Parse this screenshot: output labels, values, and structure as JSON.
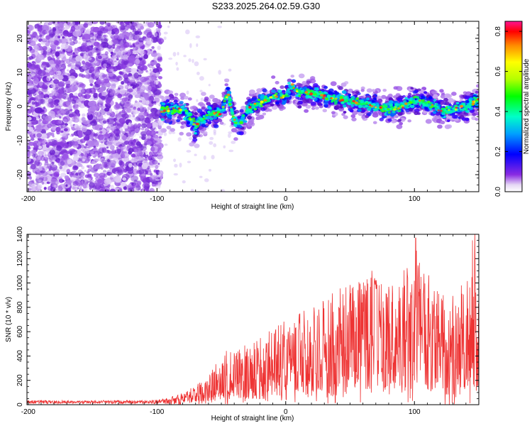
{
  "title": "S233.2025.264.02.59.G30",
  "chart_data": [
    {
      "type": "heatmap",
      "xlabel": "Height of straight line (km)",
      "ylabel": "Frequency (Hz)",
      "xlim": [
        -201,
        150
      ],
      "ylim": [
        -25,
        25
      ],
      "xticks": [
        -200,
        -100,
        0,
        100
      ],
      "xtick_labels": [
        "-200",
        "-100",
        "0",
        "100"
      ],
      "yticks": [
        -20,
        -10,
        0,
        10,
        20
      ],
      "ytick_labels": [
        "-20",
        "-10",
        "0",
        "10",
        "20"
      ],
      "colorbar": {
        "label": "Normalized spectral amplitude",
        "range": [
          0,
          0.85
        ],
        "ticks": [
          0.0,
          0.2,
          0.4,
          0.6,
          0.8
        ],
        "tick_labels": [
          "0.0",
          "0.2",
          "0.4",
          "0.6",
          "0.8"
        ]
      },
      "ridge": {
        "description": "signal ridge frequency (Hz) vs height (km)",
        "x": [
          -100,
          -90,
          -80,
          -75,
          -70,
          -60,
          -50,
          -45,
          -40,
          -35,
          -30,
          -20,
          -10,
          0,
          5,
          10,
          20,
          30,
          40,
          50,
          60,
          70,
          80,
          90,
          100,
          110,
          120,
          130,
          140,
          150
        ],
        "y": [
          -1,
          -1,
          -1,
          -3,
          -6,
          -2,
          -2,
          4,
          -4,
          -5,
          -1,
          1,
          3,
          3,
          6,
          4,
          4,
          3,
          2,
          2,
          1,
          0,
          -1,
          0,
          2,
          1,
          -1,
          -1,
          0,
          2
        ]
      }
    },
    {
      "type": "line",
      "color": "#ee3333",
      "xlabel": "Height of straight line (km)",
      "ylabel": "SNR (10 * v/v)",
      "xlim": [
        -201,
        150
      ],
      "ylim": [
        0,
        1400
      ],
      "xticks": [
        -200,
        -100,
        0,
        100
      ],
      "xtick_labels": [
        "-200",
        "-100",
        "0",
        "100"
      ],
      "yticks": [
        0,
        200,
        400,
        600,
        800,
        1000,
        1200,
        1400
      ],
      "ytick_labels": [
        "0",
        "200",
        "400",
        "600",
        "800",
        "1000",
        "1200",
        "1400"
      ],
      "envelope": {
        "description": "approximate upper envelope of SNR vs height",
        "x": [
          -201,
          -150,
          -100,
          -90,
          -80,
          -70,
          -60,
          -50,
          -40,
          -30,
          -20,
          -10,
          0,
          10,
          20,
          30,
          40,
          50,
          60,
          70,
          80,
          90,
          100,
          110,
          120,
          130,
          140,
          145,
          150
        ],
        "y": [
          35,
          35,
          40,
          60,
          100,
          170,
          250,
          420,
          480,
          500,
          560,
          620,
          700,
          750,
          820,
          880,
          950,
          1000,
          1050,
          1050,
          1000,
          1050,
          1370,
          1100,
          900,
          950,
          1050,
          1400,
          850
        ]
      },
      "peaks": [
        {
          "x": 101,
          "y": 1370
        },
        {
          "x": 147,
          "y": 1400
        },
        {
          "x": 103,
          "y": 1120
        },
        {
          "x": 67,
          "y": 1100
        }
      ]
    }
  ]
}
